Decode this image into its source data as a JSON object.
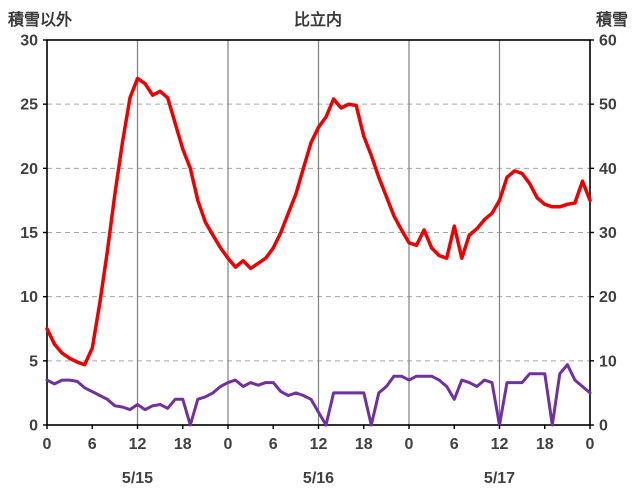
{
  "header": {
    "left_axis_label": "積雪以外",
    "title": "比立内",
    "right_axis_label": "積雪"
  },
  "chart_data": {
    "type": "line",
    "title": "比立内",
    "left_axis": {
      "label": "積雪以外",
      "min": 0,
      "max": 30,
      "ticks": [
        0,
        5,
        10,
        15,
        20,
        25,
        30
      ]
    },
    "right_axis": {
      "label": "積雪",
      "min": 0,
      "max": 60,
      "ticks": [
        0,
        10,
        20,
        30,
        40,
        50,
        60
      ]
    },
    "x_hours_total": 72,
    "x_tick_step": 6,
    "x_tick_labels": [
      "0",
      "6",
      "12",
      "18",
      "0",
      "6",
      "12",
      "18",
      "0",
      "6",
      "12",
      "18",
      "0"
    ],
    "date_labels": [
      {
        "hour": 12,
        "label": "5/15"
      },
      {
        "hour": 36,
        "label": "5/16"
      },
      {
        "hour": 60,
        "label": "5/17"
      }
    ],
    "vgrid_hours": [
      12,
      24,
      36,
      48,
      60
    ],
    "grid": true,
    "legend": "none",
    "series": [
      {
        "name": "積雪以外",
        "axis": "left",
        "color": "#7030a0",
        "values": [
          3.5,
          3.2,
          3.5,
          3.5,
          3.4,
          2.9,
          2.6,
          2.3,
          2.0,
          1.5,
          1.4,
          1.2,
          1.6,
          1.2,
          1.5,
          1.6,
          1.3,
          2.0,
          2.0,
          0.0,
          2.0,
          2.2,
          2.5,
          3.0,
          3.3,
          3.5,
          3.0,
          3.3,
          3.1,
          3.3,
          3.3,
          2.6,
          2.3,
          2.5,
          2.3,
          2.0,
          1.0,
          0.0,
          2.5,
          2.5,
          2.5,
          2.5,
          2.5,
          0.0,
          2.5,
          3.0,
          3.8,
          3.8,
          3.5,
          3.8,
          3.8,
          3.8,
          3.5,
          3.0,
          2.0,
          3.5,
          3.3,
          3.0,
          3.5,
          3.3,
          0.0,
          3.3,
          3.3,
          3.3,
          4.0,
          4.0,
          4.0,
          0.0,
          4.0,
          4.7,
          3.5,
          3.0,
          2.5
        ]
      },
      {
        "name": "積雪",
        "axis": "right",
        "color": "#ee0000",
        "values": [
          15,
          12.6,
          11.2,
          10.4,
          9.8,
          9.4,
          12,
          19,
          27,
          36,
          44,
          51,
          54,
          53.2,
          51.4,
          52,
          51,
          47,
          43,
          40,
          35,
          31.6,
          29.6,
          27.6,
          26,
          24.6,
          25.6,
          24.4,
          25.2,
          26,
          27.6,
          30,
          33,
          36,
          40,
          44,
          46.4,
          48,
          50.8,
          49.4,
          50,
          49.8,
          45,
          42,
          38.6,
          35.6,
          32.6,
          30.4,
          28.4,
          28,
          30.4,
          27.6,
          26.4,
          26,
          31,
          26,
          29.6,
          30.6,
          32,
          33,
          35,
          38.6,
          39.6,
          39.2,
          37.6,
          35.4,
          34.4,
          34,
          34,
          34.4,
          34.6,
          38,
          35
        ]
      }
    ]
  },
  "colors": {
    "grid": "#a6a6a6",
    "vgrid": "#808080",
    "border": "#000000",
    "tick_text": "#404040"
  }
}
